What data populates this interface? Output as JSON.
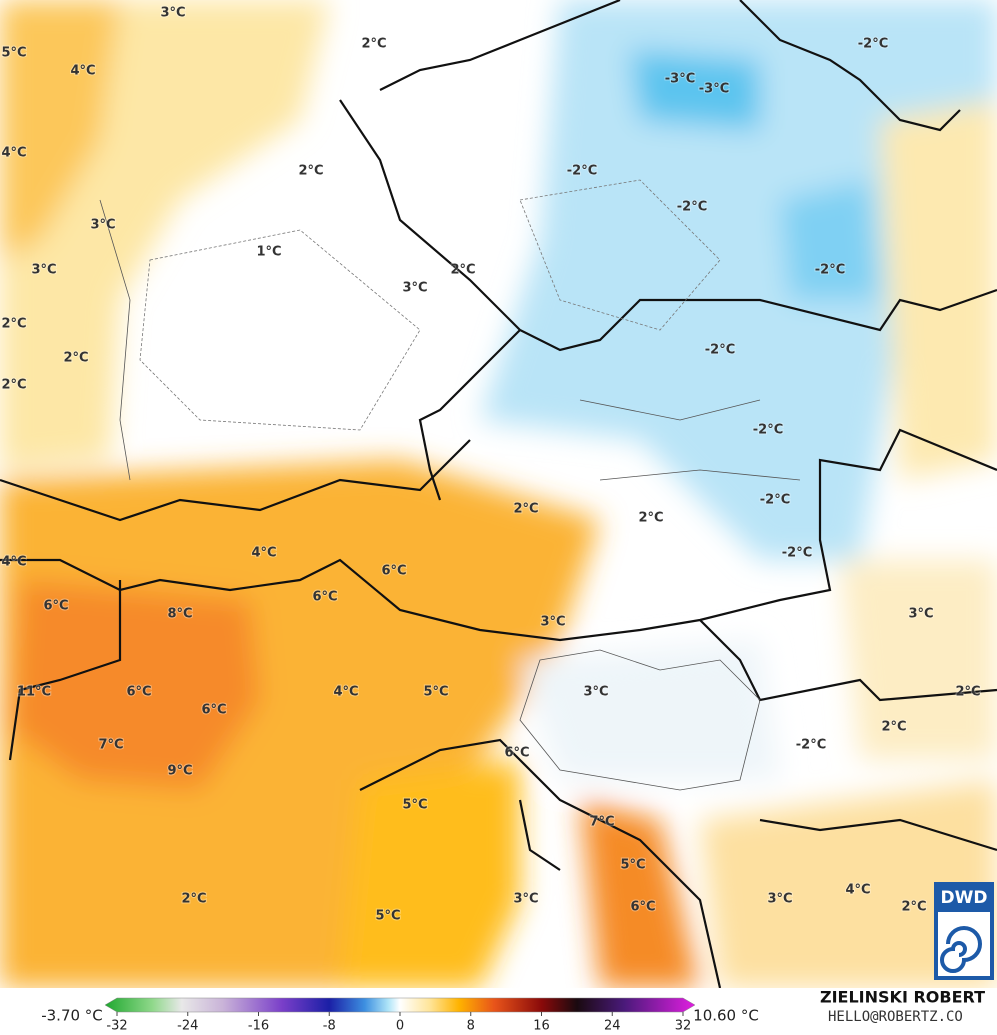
{
  "labels": [
    "3°C",
    "2°C",
    "-2°C",
    "5°C",
    "4°C",
    "-3°C",
    "-3°C",
    "4°C",
    "2°C",
    "-2°C",
    "-2°C",
    "3°C",
    "1°C",
    "2°C",
    "-2°C",
    "3°C",
    "3°C",
    "2°C",
    "2°C",
    "-2°C",
    "2°C",
    "-2°C",
    "-2°C",
    "2°C",
    "2°C",
    "4°C",
    "4°C",
    "-2°C",
    "6°C",
    "6°C",
    "6°C",
    "8°C",
    "3°C",
    "3°C",
    "11°C",
    "6°C",
    "4°C",
    "5°C",
    "3°C",
    "2°C",
    "6°C",
    "2°C",
    "7°C",
    "-2°C",
    "6°C",
    "9°C",
    "5°C",
    "7°C",
    "5°C",
    "3°C",
    "4°C",
    "2°C",
    "3°C",
    "2°C",
    "5°C",
    "6°C"
  ],
  "colorbar": {
    "min_label": "-3.70 °C",
    "max_label": "10.60 °C",
    "range": [
      -32,
      32
    ],
    "ticks": [
      -32,
      -24,
      -16,
      -8,
      0,
      8,
      16,
      24,
      32
    ]
  },
  "credits": {
    "author": "ZIELINSKI ROBERT",
    "email": "HELLO@ROBERTZ.CO"
  },
  "logo": "DWD"
}
